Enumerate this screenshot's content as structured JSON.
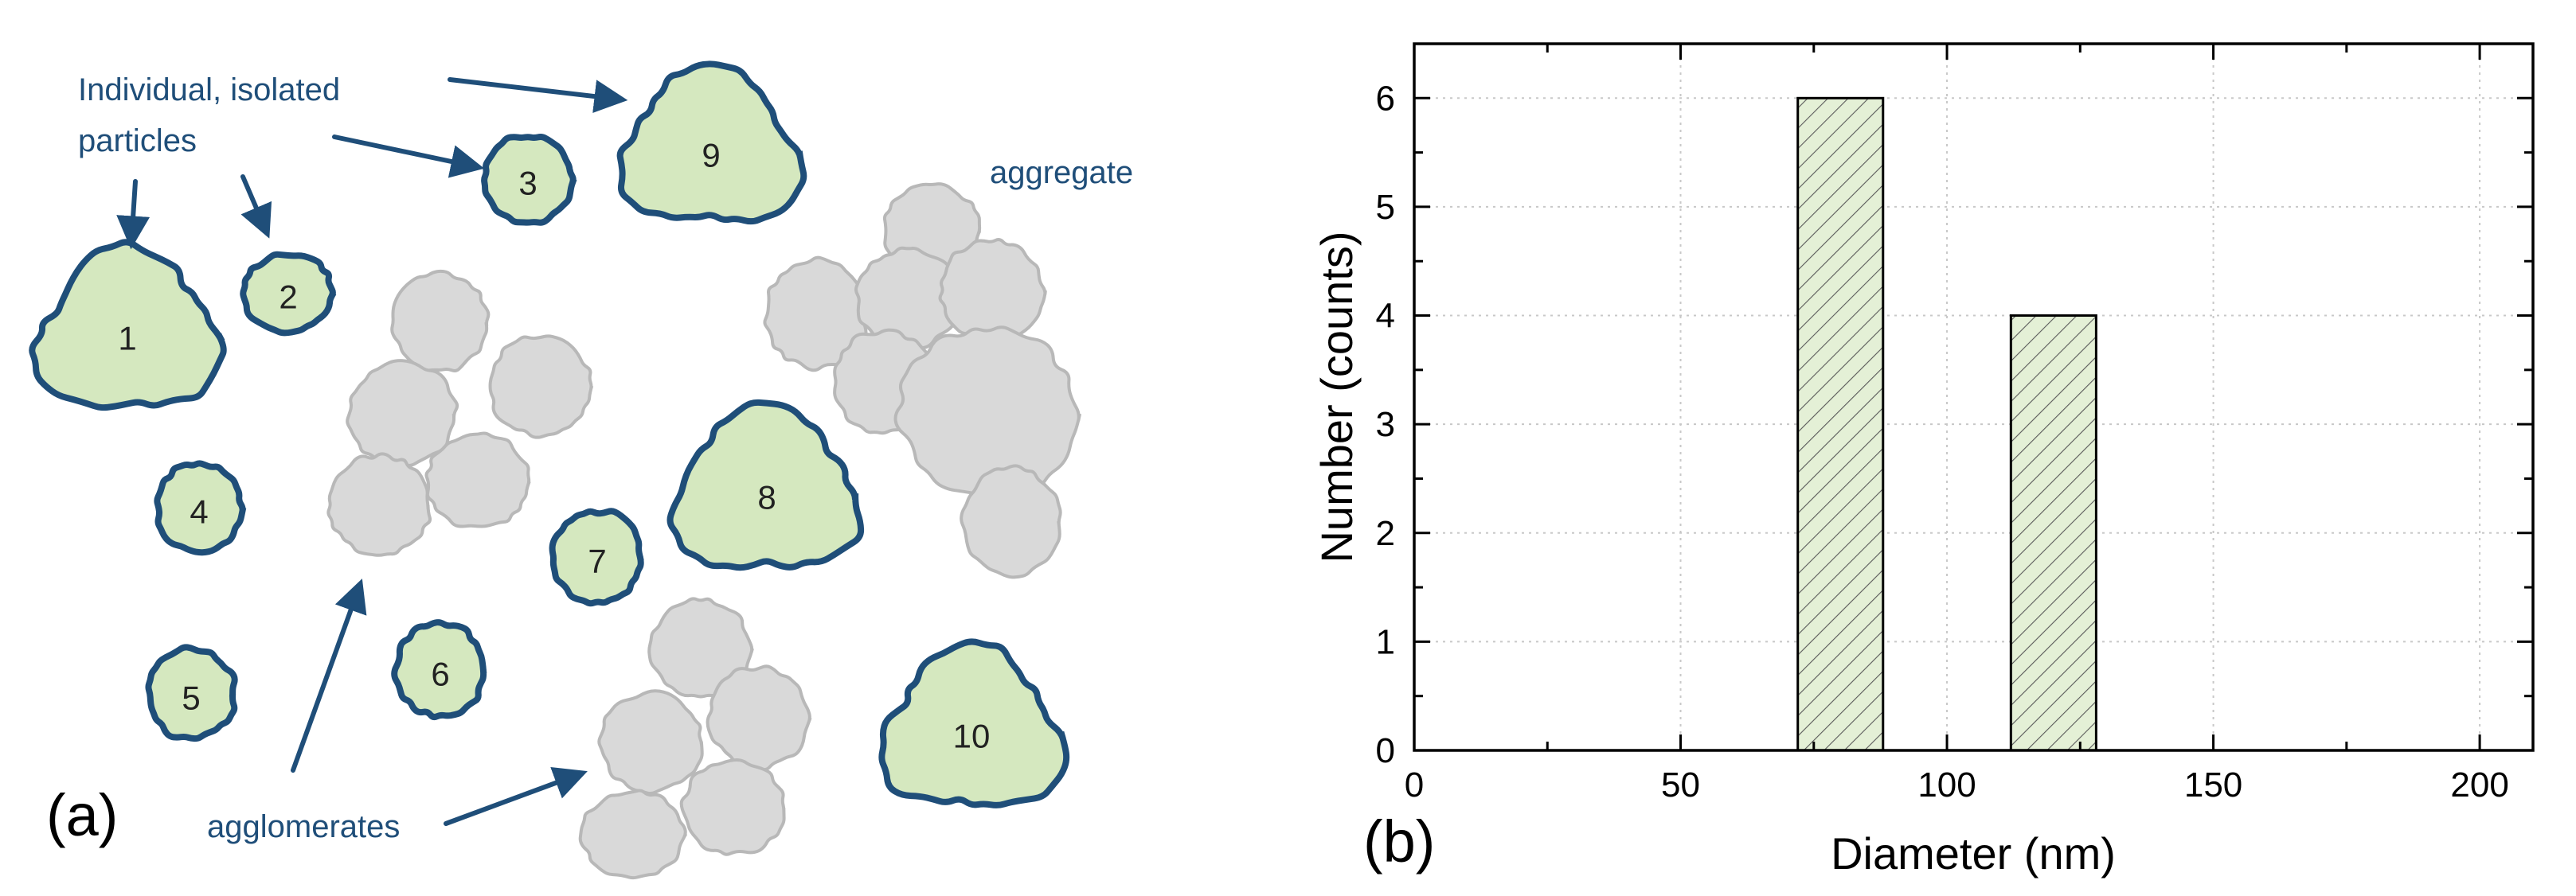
{
  "panel_a": {
    "label": "(a)",
    "annotation_isolated": [
      "Individual, isolated",
      "particles"
    ],
    "annotation_aggregate": "aggregate",
    "annotation_agglomerates": "agglomerates",
    "particle_labels": [
      "1",
      "2",
      "3",
      "4",
      "5",
      "6",
      "7",
      "8",
      "9",
      "10"
    ],
    "colors": {
      "particle_fill": "#d5e8bf",
      "particle_stroke": "#1f4e79",
      "grey_fill": "#d9d9d9",
      "grey_stroke": "#b8b8b8",
      "arrow": "#1f4e79"
    }
  },
  "panel_b": {
    "label": "(b)"
  },
  "chart_data": {
    "type": "bar",
    "title": "",
    "xlabel": "Diameter (nm)",
    "ylabel": "Number (counts)",
    "xlim": [
      0,
      210
    ],
    "ylim": [
      0,
      6.5
    ],
    "xticks": [
      "0",
      "50",
      "100",
      "150",
      "200"
    ],
    "yticks": [
      "0",
      "1",
      "2",
      "3",
      "4",
      "5",
      "6"
    ],
    "grid": true,
    "bins": [
      {
        "from": 72,
        "to": 88,
        "count": 6
      },
      {
        "from": 112,
        "to": 128,
        "count": 4
      }
    ],
    "bar_fill": "#e4f0d6",
    "bar_hatch": "diagonal"
  }
}
